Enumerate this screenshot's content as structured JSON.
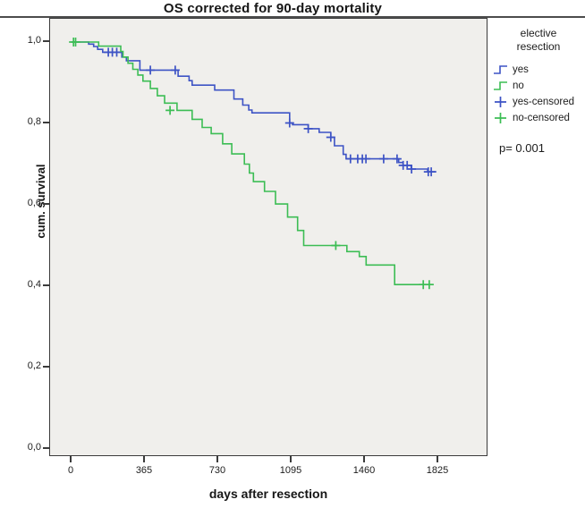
{
  "title": "OS corrected for 90-day mortality",
  "axes": {
    "x": {
      "label": "days after resection",
      "ticks": [
        {
          "label": "0",
          "value": 0
        },
        {
          "label": "365",
          "value": 365
        },
        {
          "label": "730",
          "value": 730
        },
        {
          "label": "1095",
          "value": 1095
        },
        {
          "label": "1460",
          "value": 1460
        },
        {
          "label": "1825",
          "value": 1825
        }
      ]
    },
    "y": {
      "label": "cum. survival",
      "ticks": [
        {
          "label": "1,0",
          "value": 1.0
        },
        {
          "label": "0,8",
          "value": 0.8
        },
        {
          "label": "0,6",
          "value": 0.6
        },
        {
          "label": "0,4",
          "value": 0.4
        },
        {
          "label": "0,2",
          "value": 0.2
        },
        {
          "label": "0,0",
          "value": 0.0
        }
      ]
    }
  },
  "legend": {
    "title": "elective\nresection",
    "items": [
      {
        "label": "yes",
        "type": "step-line",
        "series": "yes"
      },
      {
        "label": "no",
        "type": "step-line",
        "series": "no"
      },
      {
        "label": "yes-censored",
        "type": "censor-mark",
        "series": "yes"
      },
      {
        "label": "no-censored",
        "type": "censor-mark",
        "series": "no"
      }
    ],
    "p_value": "p= 0.001"
  },
  "chart_data": {
    "type": "line",
    "subtype": "kaplan-meier-step",
    "title": "OS corrected for 90-day mortality",
    "xlabel": "days after resection",
    "ylabel": "cum. survival",
    "xlim": [
      -107,
      2074
    ],
    "ylim": [
      -0.02,
      1.06
    ],
    "grid": false,
    "legend_position": "right",
    "p_value": "p= 0.001",
    "plot_background": "#f0efec",
    "series": [
      {
        "name": "yes",
        "color": "#3d53c5",
        "end_day": 1815,
        "steps": [
          [
            0,
            1.0
          ],
          [
            85,
            0.995
          ],
          [
            110,
            0.989
          ],
          [
            130,
            0.982
          ],
          [
            155,
            0.975
          ],
          [
            250,
            0.963
          ],
          [
            273,
            0.954
          ],
          [
            340,
            0.931
          ],
          [
            530,
            0.916
          ],
          [
            585,
            0.905
          ],
          [
            600,
            0.894
          ],
          [
            712,
            0.882
          ],
          [
            808,
            0.86
          ],
          [
            852,
            0.845
          ],
          [
            882,
            0.833
          ],
          [
            898,
            0.826
          ],
          [
            1085,
            0.801
          ],
          [
            1100,
            0.797
          ],
          [
            1178,
            0.787
          ],
          [
            1232,
            0.778
          ],
          [
            1290,
            0.766
          ],
          [
            1308,
            0.745
          ],
          [
            1352,
            0.724
          ],
          [
            1366,
            0.713
          ],
          [
            1628,
            0.704
          ],
          [
            1650,
            0.697
          ],
          [
            1690,
            0.688
          ],
          [
            1772,
            0.681
          ]
        ],
        "censored": [
          [
            183,
            0.975
          ],
          [
            203,
            0.975
          ],
          [
            225,
            0.975
          ],
          [
            392,
            0.931
          ],
          [
            516,
            0.931
          ],
          [
            1085,
            0.801
          ],
          [
            1178,
            0.787
          ],
          [
            1290,
            0.766
          ],
          [
            1388,
            0.713
          ],
          [
            1424,
            0.713
          ],
          [
            1447,
            0.713
          ],
          [
            1465,
            0.713
          ],
          [
            1553,
            0.713
          ],
          [
            1620,
            0.713
          ],
          [
            1650,
            0.697
          ],
          [
            1670,
            0.697
          ],
          [
            1692,
            0.688
          ],
          [
            1775,
            0.681
          ],
          [
            1790,
            0.681
          ]
        ]
      },
      {
        "name": "no",
        "color": "#3cbd54",
        "end_day": 1800,
        "steps": [
          [
            0,
            1.0
          ],
          [
            135,
            0.99
          ],
          [
            245,
            0.977
          ],
          [
            256,
            0.963
          ],
          [
            281,
            0.948
          ],
          [
            305,
            0.933
          ],
          [
            330,
            0.919
          ],
          [
            355,
            0.904
          ],
          [
            392,
            0.886
          ],
          [
            427,
            0.868
          ],
          [
            463,
            0.85
          ],
          [
            525,
            0.832
          ],
          [
            600,
            0.81
          ],
          [
            650,
            0.79
          ],
          [
            695,
            0.775
          ],
          [
            752,
            0.75
          ],
          [
            797,
            0.725
          ],
          [
            860,
            0.7
          ],
          [
            885,
            0.678
          ],
          [
            905,
            0.657
          ],
          [
            960,
            0.633
          ],
          [
            1015,
            0.602
          ],
          [
            1075,
            0.57
          ],
          [
            1125,
            0.537
          ],
          [
            1155,
            0.5
          ],
          [
            1370,
            0.485
          ],
          [
            1432,
            0.473
          ],
          [
            1466,
            0.452
          ],
          [
            1608,
            0.404
          ]
        ],
        "censored": [
          [
            10,
            1.0
          ],
          [
            20,
            1.0
          ],
          [
            490,
            0.832
          ],
          [
            1315,
            0.5
          ],
          [
            1750,
            0.404
          ],
          [
            1780,
            0.404
          ]
        ]
      }
    ]
  }
}
